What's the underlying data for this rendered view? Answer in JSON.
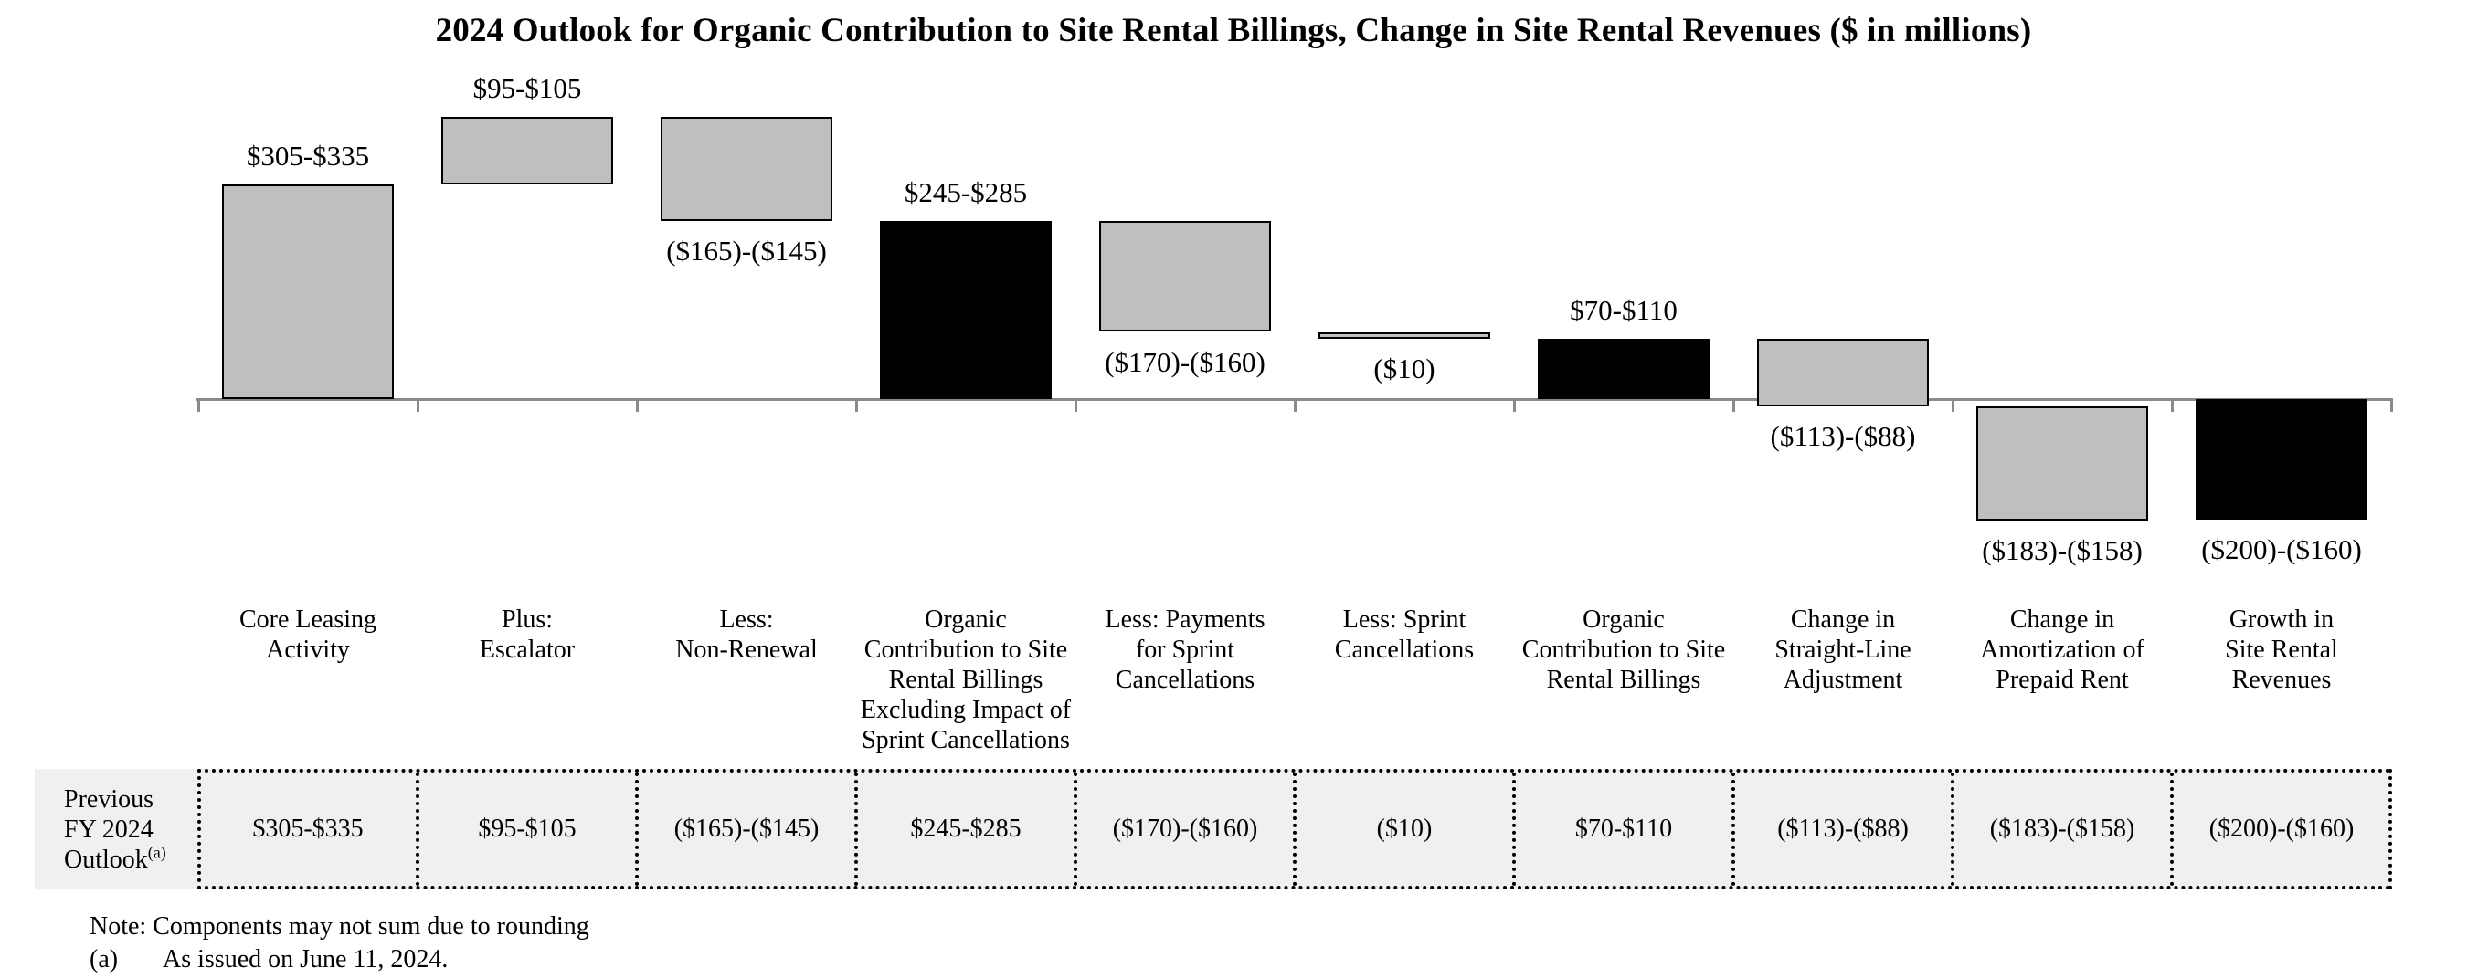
{
  "title": "2024 Outlook for Organic Contribution to Site Rental Billings, Change in Site Rental Revenues ($ in millions)",
  "colors": {
    "bar_gray": "#bfbfbf",
    "bar_black": "#000000",
    "axis_gray": "#8a8a8a",
    "table_bg": "#f0f0f0"
  },
  "chart_data": {
    "type": "bar",
    "subtype": "waterfall",
    "title": "2024 Outlook for Organic Contribution to Site Rental Billings, Change in Site Rental Revenues ($ in millions)",
    "units": "$ in millions",
    "ylim": [
      -200,
      430
    ],
    "grid": false,
    "legend": false,
    "bars": [
      {
        "category_lines": [
          "Core Leasing",
          "Activity"
        ],
        "label": "$305-$335",
        "range_low": 305,
        "range_high": 335,
        "start": 0,
        "end": 320,
        "color": "#bfbfbf",
        "label_side": "above"
      },
      {
        "category_lines": [
          "Plus:",
          "Escalator"
        ],
        "label": "$95-$105",
        "range_low": 95,
        "range_high": 105,
        "start": 320,
        "end": 420,
        "color": "#bfbfbf",
        "label_side": "above"
      },
      {
        "category_lines": [
          "Less:",
          "Non-Renewal"
        ],
        "label": "($165)-($145)",
        "range_low": -165,
        "range_high": -145,
        "start": 420,
        "end": 265,
        "color": "#bfbfbf",
        "label_side": "below"
      },
      {
        "category_lines": [
          "Organic",
          "Contribution to Site",
          "Rental Billings",
          "Excluding Impact of",
          "Sprint Cancellations"
        ],
        "label": "$245-$285",
        "range_low": 245,
        "range_high": 285,
        "start": 0,
        "end": 265,
        "color": "#000000",
        "label_side": "above"
      },
      {
        "category_lines": [
          "Less: Payments",
          "for Sprint",
          "Cancellations"
        ],
        "label": "($170)-($160)",
        "range_low": -170,
        "range_high": -160,
        "start": 265,
        "end": 100,
        "color": "#bfbfbf",
        "label_side": "below"
      },
      {
        "category_lines": [
          "Less: Sprint",
          "Cancellations"
        ],
        "label": "($10)",
        "range_low": -10,
        "range_high": -10,
        "start": 100,
        "end": 90,
        "color": "#bfbfbf",
        "label_side": "below"
      },
      {
        "category_lines": [
          "Organic",
          "Contribution to Site",
          "Rental Billings"
        ],
        "label": "$70-$110",
        "range_low": 70,
        "range_high": 110,
        "start": 0,
        "end": 90,
        "color": "#000000",
        "label_side": "above"
      },
      {
        "category_lines": [
          "Change in",
          "Straight-Line",
          "Adjustment"
        ],
        "label": "($113)-($88)",
        "range_low": -113,
        "range_high": -88,
        "start": 90,
        "end": -10.5,
        "color": "#bfbfbf",
        "label_side": "below"
      },
      {
        "category_lines": [
          "Change in",
          "Amortization of",
          "Prepaid Rent"
        ],
        "label": "($183)-($158)",
        "range_low": -183,
        "range_high": -158,
        "start": -10.5,
        "end": -181,
        "color": "#bfbfbf",
        "label_side": "below"
      },
      {
        "category_lines": [
          "Growth in",
          "Site Rental",
          "Revenues"
        ],
        "label": "($200)-($160)",
        "range_low": -200,
        "range_high": -160,
        "start": 0,
        "end": -180,
        "color": "#000000",
        "label_side": "below"
      }
    ]
  },
  "table": {
    "header_lines": [
      "Previous",
      "FY 2024",
      "Outlook"
    ],
    "header_superscript": "(a)",
    "values": [
      "$305-$335",
      "$95-$105",
      "($165)-($145)",
      "$245-$285",
      "($170)-($160)",
      "($10)",
      "$70-$110",
      "($113)-($88)",
      "($183)-($158)",
      "($200)-($160)"
    ]
  },
  "notes": {
    "line1": "Note: Components may not sum due to rounding",
    "line2_marker": "(a)",
    "line2_text": "As issued on June 11, 2024."
  }
}
